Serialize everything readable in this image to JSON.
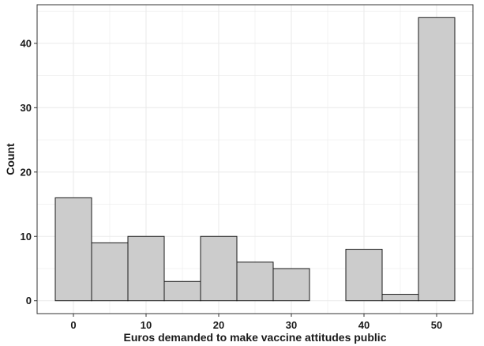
{
  "chart_data": {
    "type": "bar",
    "subtype": "histogram",
    "title": "",
    "xlabel": "Euros demanded to make vaccine attitudes public",
    "ylabel": "Count",
    "bin_width": 5,
    "bins": [
      {
        "center": 0,
        "count": 16
      },
      {
        "center": 5,
        "count": 9
      },
      {
        "center": 10,
        "count": 10
      },
      {
        "center": 15,
        "count": 3
      },
      {
        "center": 20,
        "count": 10
      },
      {
        "center": 25,
        "count": 6
      },
      {
        "center": 30,
        "count": 5
      },
      {
        "center": 35,
        "count": 0
      },
      {
        "center": 40,
        "count": 8
      },
      {
        "center": 45,
        "count": 1
      },
      {
        "center": 50,
        "count": 44
      }
    ],
    "xlim": [
      -5,
      55
    ],
    "ylim": [
      -2,
      46
    ],
    "x_ticks": [
      0,
      10,
      20,
      30,
      40,
      50
    ],
    "y_ticks": [
      0,
      10,
      20,
      30,
      40
    ],
    "grid": true,
    "legend": "none",
    "colors": {
      "bar_fill": "#cccccc",
      "bar_stroke": "#1a1a1a",
      "grid": "#ebebeb",
      "panel_border": "#333333"
    }
  }
}
